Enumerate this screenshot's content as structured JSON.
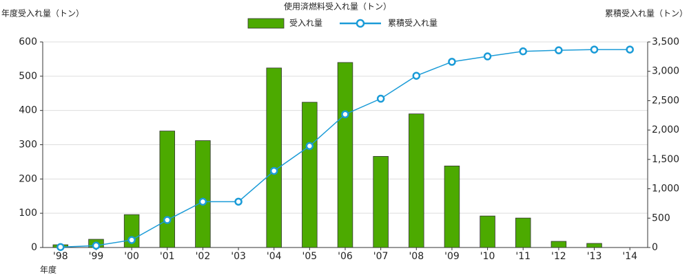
{
  "chart_data": {
    "type": "bar",
    "title": "使用済燃料受入れ量（トン）",
    "y_label": "年度受入れ量（トン）",
    "y2_label": "累積受入れ量（トン）",
    "x_label": "年度",
    "categories": [
      "'98",
      "'99",
      "'00",
      "'01",
      "'02",
      "'03",
      "'04",
      "'05",
      "'06",
      "'07",
      "'08",
      "'09",
      "'10",
      "'11",
      "'12",
      "'13",
      "'14"
    ],
    "series": [
      {
        "name": "受入れ量",
        "type": "bar",
        "color": "#4caa00",
        "values": [
          8,
          24,
          96,
          340,
          312,
          0,
          524,
          424,
          540,
          266,
          390,
          238,
          92,
          86,
          18,
          12,
          0
        ]
      },
      {
        "name": "累積受入れ量",
        "type": "line",
        "axis": "y2",
        "color": "#1a9bd7",
        "values": [
          8,
          32,
          128,
          468,
          780,
          780,
          1304,
          1728,
          2268,
          2534,
          2924,
          3162,
          3254,
          3340,
          3358,
          3370,
          3370
        ]
      }
    ],
    "ylim": [
      0,
      600
    ],
    "yticks": [
      0,
      100,
      200,
      300,
      400,
      500,
      600
    ],
    "y2lim": [
      0,
      3500
    ],
    "y2ticks": [
      0,
      500,
      {
        "value": 1000,
        "label": "1,000"
      },
      {
        "value": 1500,
        "label": "1,500"
      },
      {
        "value": 2000,
        "label": "2,000"
      },
      {
        "value": 2500,
        "label": "2,500"
      },
      {
        "value": 3000,
        "label": "3,000"
      },
      {
        "value": 3500,
        "label": "3,500"
      }
    ],
    "grid": true
  }
}
